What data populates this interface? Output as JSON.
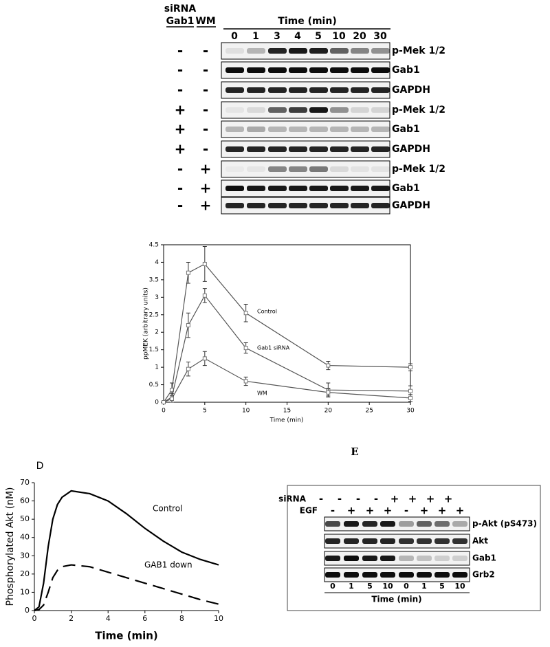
{
  "blot_a": {
    "sirna_label": "siRNA",
    "gab1_label": "Gab1",
    "wm_label": "WM",
    "time_label": "Time (min)",
    "times": [
      0,
      1,
      3,
      4,
      5,
      10,
      20,
      30
    ],
    "rows": [
      {
        "gab1": "-",
        "wm": "-",
        "label": "p-Mek 1/2"
      },
      {
        "gab1": "-",
        "wm": "-",
        "label": "Gab1"
      },
      {
        "gab1": "-",
        "wm": "-",
        "label": "GAPDH"
      },
      {
        "gab1": "+",
        "wm": "-",
        "label": "p-Mek 1/2"
      },
      {
        "gab1": "+",
        "wm": "-",
        "label": "Gab1"
      },
      {
        "gab1": "+",
        "wm": "-",
        "label": "GAPDH"
      },
      {
        "gab1": "-",
        "wm": "+",
        "label": "p-Mek 1/2"
      },
      {
        "gab1": "-",
        "wm": "+",
        "label": "Gab1"
      },
      {
        "gab1": "-",
        "wm": "+",
        "label": "GAPDH"
      }
    ]
  },
  "panel_d_label": "D",
  "panel_e_label": "E",
  "chart_data": [
    {
      "type": "line",
      "x_label": "Time (min)",
      "y_label": "ppMEK (arbitrary units)",
      "x": [
        0,
        1,
        3,
        5,
        10,
        20,
        30
      ],
      "xlim": [
        0,
        30
      ],
      "xticks": [
        0,
        5,
        10,
        15,
        20,
        25,
        30
      ],
      "ylim": [
        0,
        4.5
      ],
      "yticks": [
        0,
        0.5,
        1,
        1.5,
        2,
        2.5,
        3,
        3.5,
        4,
        4.5
      ],
      "series": [
        {
          "name": "Control",
          "color": "#555555",
          "values": [
            0,
            0.35,
            3.7,
            3.95,
            2.55,
            1.05,
            1.0
          ],
          "errors": [
            0,
            0.2,
            0.3,
            0.5,
            0.25,
            0.12,
            0.1
          ]
        },
        {
          "name": "Gab1 siRNA",
          "color": "#555555",
          "values": [
            0,
            0.15,
            2.2,
            3.05,
            1.55,
            0.35,
            0.32
          ],
          "errors": [
            0,
            0.1,
            0.35,
            0.2,
            0.15,
            0.2,
            0.15
          ]
        },
        {
          "name": "WM",
          "color": "#555555",
          "values": [
            0,
            0.1,
            0.95,
            1.25,
            0.6,
            0.28,
            0.12
          ],
          "errors": [
            0,
            0.1,
            0.2,
            0.2,
            0.12,
            0.1,
            0.1
          ]
        }
      ]
    },
    {
      "type": "line",
      "x_label": "Time  (min)",
      "y_label": "Phosphorylated Akt (nM)",
      "x": [
        0,
        0.25,
        0.5,
        0.75,
        1,
        1.25,
        1.5,
        2,
        3,
        4,
        5,
        6,
        7,
        8,
        9,
        10
      ],
      "xlim": [
        0,
        10
      ],
      "xticks": [
        0,
        2,
        4,
        6,
        8,
        10
      ],
      "ylim": [
        0,
        70
      ],
      "yticks": [
        0,
        10,
        20,
        30,
        40,
        50,
        60,
        70
      ],
      "series": [
        {
          "name": "Control",
          "color": "#000000",
          "line_style": "solid",
          "values": [
            0,
            2,
            15,
            35,
            50,
            58,
            62,
            65.5,
            64,
            60,
            53,
            45,
            38,
            32,
            28,
            25
          ]
        },
        {
          "name": "GAB1 down",
          "color": "#000000",
          "line_style": "dashed",
          "values": [
            0,
            0.5,
            3,
            10,
            18,
            22,
            24,
            25,
            24,
            21,
            18,
            15,
            12,
            9,
            6,
            3.5
          ]
        }
      ]
    }
  ],
  "blot_e": {
    "sirna_label": "siRNA",
    "egf_label": "EGF",
    "sirna": [
      "-",
      "-",
      "-",
      "-",
      "+",
      "+",
      "+",
      "+"
    ],
    "egf": [
      "-",
      "+",
      "+",
      "+",
      "-",
      "+",
      "+",
      "+"
    ],
    "rows": [
      "p-Akt (pS473)",
      "Akt",
      "Gab1",
      "Grb2"
    ],
    "times": [
      0,
      1,
      5,
      10,
      0,
      1,
      5,
      10
    ],
    "time_label": "Time (min)"
  }
}
